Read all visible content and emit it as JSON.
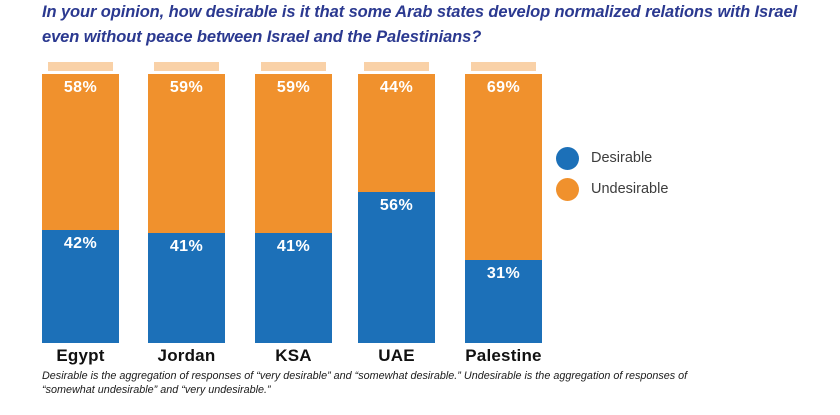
{
  "title": {
    "line1": "In your opinion, how desirable is it that some Arab states develop normalized relations with Israel",
    "line2": "even without peace between Israel and the Palestinians?"
  },
  "legend": [
    {
      "label": "Desirable",
      "color": "#1C70B8"
    },
    {
      "label": "Undesirable",
      "color": "#F0912D"
    }
  ],
  "footnote": {
    "line1": "Desirable is the aggregation of responses of “very desirable” and “somewhat desirable.” Undesirable is the aggregation of responses of",
    "line2": "“somewhat undesirable” and “very undesirable.”"
  },
  "colors": {
    "desirable_blue": "#1C70B8",
    "undesirable_orange": "#F0912D",
    "title_navy": "#2B3990",
    "value_label_white": "#FFFFFF"
  },
  "chart_data": {
    "type": "bar",
    "stacked": true,
    "orientation": "vertical",
    "title": "In your opinion, how desirable is it that some Arab states develop normalized relations with Israel even without peace between Israel and the Palestinians?",
    "categories": [
      "Egypt",
      "Jordan",
      "KSA",
      "UAE",
      "Palestine"
    ],
    "series": [
      {
        "name": "Desirable",
        "color": "#1C70B8",
        "values": [
          42,
          41,
          41,
          56,
          31
        ]
      },
      {
        "name": "Undesirable",
        "color": "#F0912D",
        "values": [
          58,
          59,
          59,
          44,
          69
        ]
      }
    ],
    "value_suffix": "%",
    "xlabel": "",
    "ylabel": "",
    "ylim": [
      0,
      100
    ],
    "grid": false,
    "legend_position": "right",
    "value_labels": "inside-top-of-segment"
  }
}
